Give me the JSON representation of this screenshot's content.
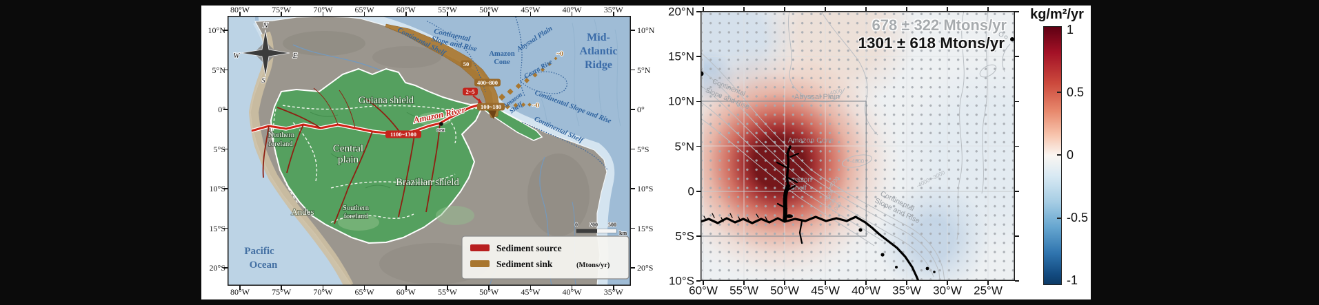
{
  "figure": {
    "description": "Amazon River sediment source-to-sink maps"
  },
  "left_map": {
    "lon_labels": [
      "80°W",
      "75°W",
      "70°W",
      "65°W",
      "60°W",
      "55°W",
      "50°W",
      "45°W",
      "40°W",
      "35°W"
    ],
    "lat_labels": [
      "10°N",
      "5°N",
      "0°",
      "5°S",
      "10°S",
      "15°S",
      "20°S"
    ],
    "compass": {
      "n": "N",
      "e": "E",
      "s": "S",
      "w": "W"
    },
    "ocean_labels": {
      "pacific_1": "Pacific",
      "pacific_2": "Ocean",
      "continental_shelf_north": "Continental Shelf",
      "continental_slope_north_1": "Continental",
      "continental_slope_north_2": "Slope and Rise",
      "amazon_cone_1": "Amazon",
      "amazon_cone_2": "Cone",
      "abyssal_plain": "Abyssal Plain",
      "ceara_rise": "Ceara Rise",
      "mid_atlantic_1": "Mid-",
      "mid_atlantic_2": "Atlantic",
      "mid_atlantic_3": "Ridge",
      "amazon_shelf_1": "Amazon",
      "amazon_shelf_2": "Shelf",
      "continental_slope_east": "Continental Slope and Rise",
      "continental_shelf_east": "Continental Shelf"
    },
    "region_labels": {
      "guiana_shield": "Guiana shield",
      "northern_foreland_1": "Northern",
      "northern_foreland_2": "foreland",
      "central_plain_1": "Central",
      "central_plain_2": "plain",
      "brazilian_shield": "Brazilian shield",
      "southern_foreland_1": "Southern",
      "southern_foreland_2": "foreland",
      "andes": "Andes"
    },
    "river_label": "Amazon River",
    "station_label": "OBI",
    "flux_labels": {
      "shelf_sink": "50",
      "cone_sink": "400~800",
      "floodplain_source": "2~5",
      "mouth_sink": "100~180",
      "river_source": "1100~1300",
      "distal_sink_a": "~0",
      "distal_sink_b": "~0"
    },
    "scale_bar": {
      "zero": "0",
      "two_hundred": "200",
      "five_hundred": "500",
      "unit": "km"
    },
    "legend": {
      "source_label": "Sediment source",
      "sink_label": "Sediment sink",
      "unit_label": "(Mtons/yr)",
      "source_color": "#b81f1f",
      "sink_color": "#a8762f"
    }
  },
  "right_map": {
    "lon_labels": [
      "60°W",
      "55°W",
      "50°W",
      "45°W",
      "40°W",
      "35°W",
      "30°W",
      "25°W"
    ],
    "lat_labels": [
      "20°N",
      "15°N",
      "10°N",
      "5°N",
      "0",
      "5°S",
      "10°S"
    ],
    "flux_total_gray": "678 ± 322 Mtons/yr",
    "flux_total_black": "1301 ± 618 Mtons/yr",
    "labels": {
      "abyssal_plain": "Abyssal Plain",
      "amazon_cone": "Amazon Cone",
      "amazon_shelf_1": "Amazon",
      "amazon_shelf_2": "Shelf",
      "continental_slope_nw_1": "Continental",
      "continental_slope_nw_2": "Slope and Rise",
      "continental_slope_se_1": "Continental",
      "continental_slope_se_2": "Slope and Rise"
    },
    "contour_labels": [
      "4000",
      "-4000",
      "-4000",
      "-3000",
      "-2000",
      "-1000",
      "-3000",
      "-4000"
    ],
    "colors": {
      "heat_positive": "#7a1014",
      "heat_negative": "#2f74ae",
      "dots": "#a6abb1"
    }
  },
  "colorbar": {
    "title": "kg/m²/yr",
    "tick_labels": [
      "1",
      "0.5",
      "0",
      "-0.5",
      "-1"
    ],
    "colors": {
      "max": "#5f0013",
      "mid": "#faf6f2",
      "min": "#0c3a66"
    }
  }
}
